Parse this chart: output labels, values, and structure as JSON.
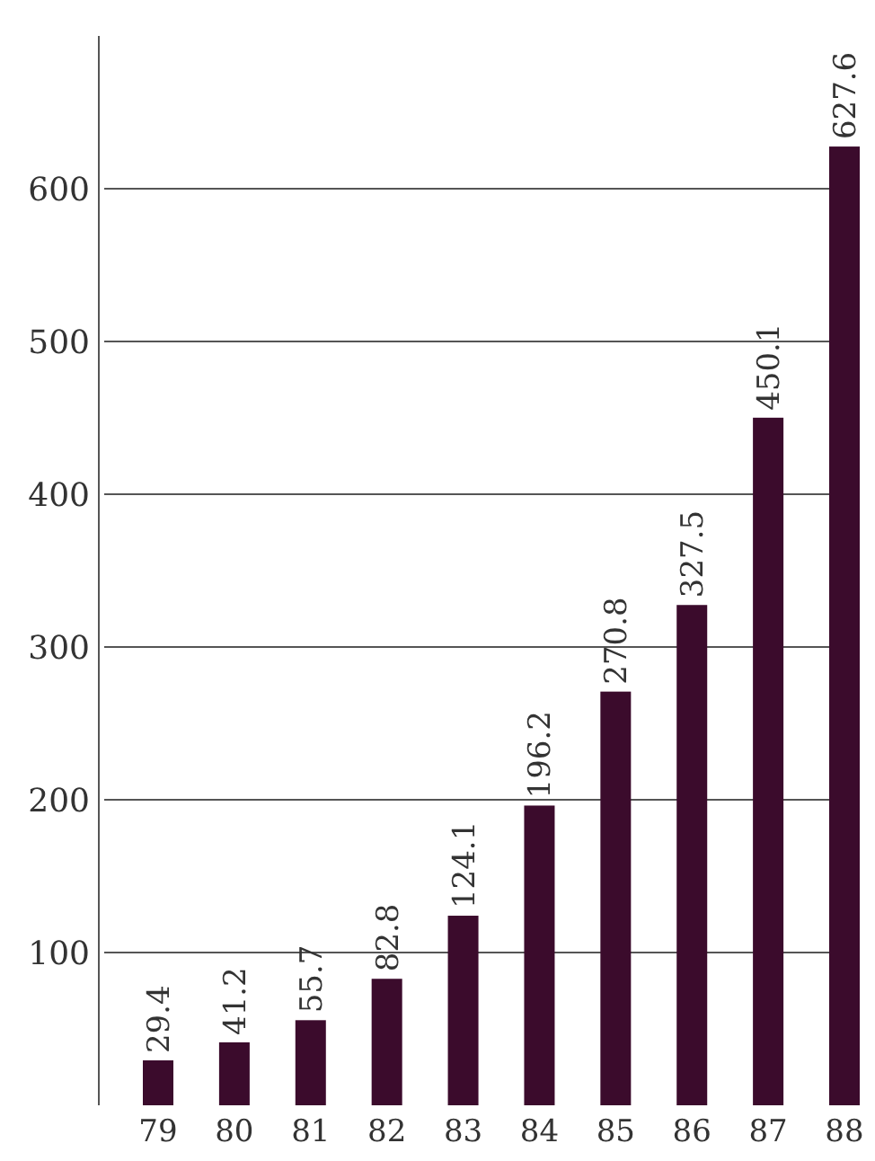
{
  "chart_data": {
    "type": "bar",
    "categories": [
      "79",
      "80",
      "81",
      "82",
      "83",
      "84",
      "85",
      "86",
      "87",
      "88"
    ],
    "values": [
      29.4,
      41.2,
      55.7,
      82.8,
      124.1,
      196.2,
      270.8,
      327.5,
      450.1,
      627.6
    ],
    "color": "#3b0b2c",
    "ylim": [
      0,
      700
    ],
    "yticks": [
      100,
      200,
      300,
      400,
      500,
      600
    ],
    "grid": "y",
    "data_labels": true
  }
}
